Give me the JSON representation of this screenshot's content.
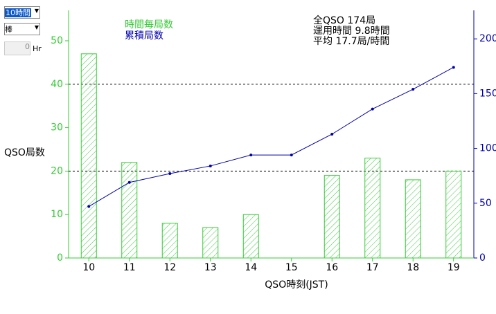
{
  "ui": {
    "hours_select": "10時間",
    "style_select": "棒",
    "offset_value": "0",
    "offset_unit": "Hr"
  },
  "chart_data": {
    "type": "bar",
    "categories": [
      "10",
      "11",
      "12",
      "13",
      "14",
      "15",
      "16",
      "17",
      "18",
      "19"
    ],
    "series": [
      {
        "name": "時間毎局数",
        "color": "#33cc33",
        "values": [
          47,
          22,
          8,
          7,
          10,
          0,
          19,
          23,
          18,
          20
        ]
      },
      {
        "name": "累積局数",
        "color": "#0000aa",
        "axis": "y2",
        "type": "line",
        "values": [
          47,
          69,
          77,
          84,
          94,
          94,
          113,
          136,
          154,
          174
        ]
      }
    ],
    "summary": [
      "全QSO 174局",
      "運用時間 9.8時間",
      "平均 17.7局/時間"
    ],
    "y_label": "QSO局数",
    "x_label": "QSO時刻(JST)",
    "ylim": [
      0,
      57
    ],
    "yticks": [
      0,
      10,
      20,
      30,
      40,
      50
    ],
    "grid_lines": [
      20,
      40
    ],
    "y2lim": [
      0,
      226
    ],
    "y2ticks": [
      0,
      50,
      100,
      150,
      200
    ]
  }
}
